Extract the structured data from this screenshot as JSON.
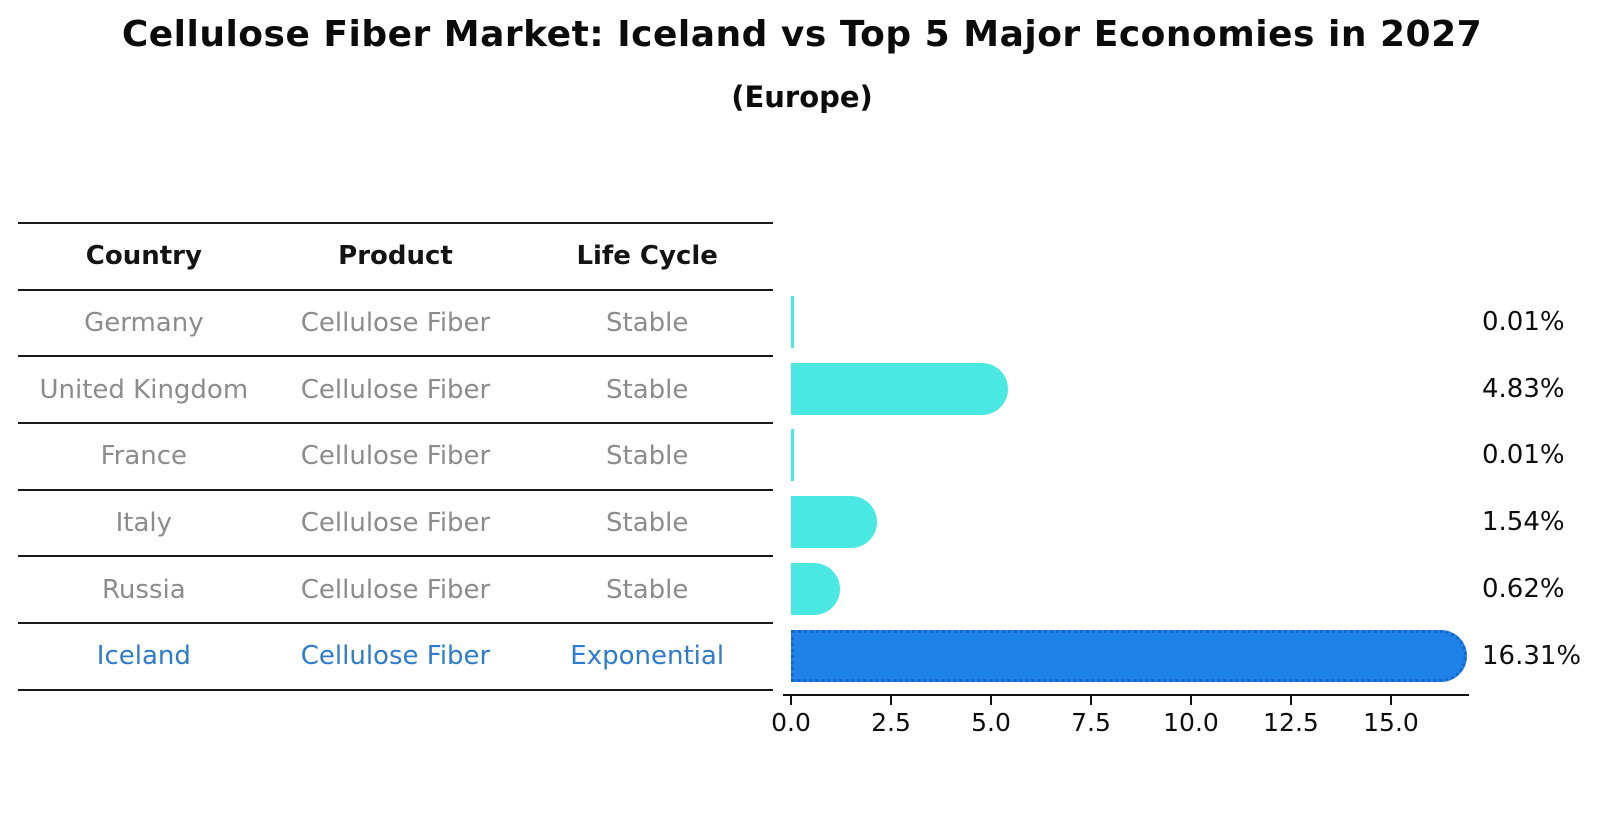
{
  "title": "Cellulose Fiber Market: Iceland vs Top 5 Major Economies in 2027",
  "subtitle": "(Europe)",
  "colors": {
    "bar_default": "#4ae8e3",
    "bar_highlight": "#1f82e8",
    "bar_highlight_edge": "#1565cc",
    "row_text": "#8c8c8c",
    "highlight_text": "#2e7cce",
    "header_text": "#141414",
    "axis_text": "#0d0d0d"
  },
  "table": {
    "headers": [
      "Country",
      "Product",
      "Life Cycle"
    ],
    "rows": [
      {
        "country": "Germany",
        "product": "Cellulose Fiber",
        "life_cycle": "Stable",
        "highlight": false
      },
      {
        "country": "United Kingdom",
        "product": "Cellulose Fiber",
        "life_cycle": "Stable",
        "highlight": false
      },
      {
        "country": "France",
        "product": "Cellulose Fiber",
        "life_cycle": "Stable",
        "highlight": false
      },
      {
        "country": "Italy",
        "product": "Cellulose Fiber",
        "life_cycle": "Stable",
        "highlight": false
      },
      {
        "country": "Russia",
        "product": "Cellulose Fiber",
        "life_cycle": "Stable",
        "highlight": false
      },
      {
        "country": "Iceland",
        "product": "Cellulose Fiber",
        "life_cycle": "Exponential",
        "highlight": true
      }
    ]
  },
  "chart_data": {
    "type": "bar",
    "orientation": "horizontal",
    "title": "Cellulose Fiber Market: Iceland vs Top 5 Major Economies in 2027 (Europe)",
    "categories": [
      "Germany",
      "United Kingdom",
      "France",
      "Italy",
      "Russia",
      "Iceland"
    ],
    "values": [
      0.01,
      4.83,
      0.01,
      1.54,
      0.62,
      16.31
    ],
    "value_labels": [
      "0.01%",
      "4.83%",
      "0.01%",
      "1.54%",
      "0.62%",
      "16.31%"
    ],
    "highlight_index": 5,
    "x_tick_values": [
      0,
      2.5,
      5,
      7.5,
      10,
      12.5,
      15
    ],
    "x_tick_labels": [
      "0.0",
      "2.5",
      "5.0",
      "7.5",
      "10.0",
      "12.5",
      "15.0"
    ],
    "xlim": [
      0,
      17.1
    ],
    "xlabel": "",
    "ylabel": "",
    "grid": false,
    "legend": false
  }
}
